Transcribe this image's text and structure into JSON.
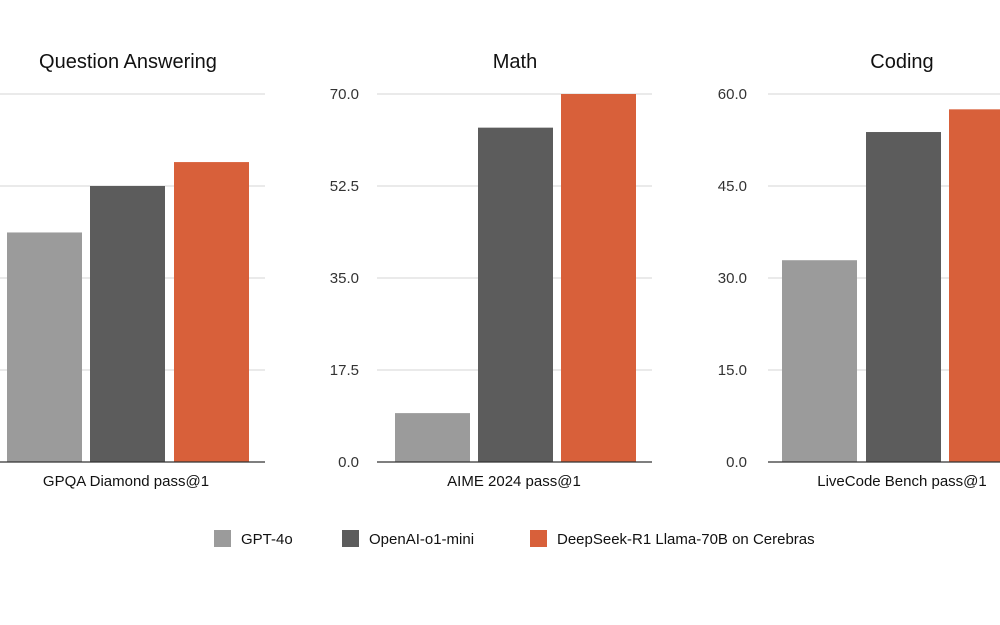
{
  "colors": {
    "GPT-4o": "#9b9b9b",
    "OpenAI-o1-mini": "#5c5c5c",
    "DeepSeek-R1 Llama-70B on Cerebras": "#d8603a"
  },
  "legend": [
    "GPT-4o",
    "OpenAI-o1-mini",
    "DeepSeek-R1 Llama-70B on Cerebras"
  ],
  "chart_data": [
    {
      "type": "bar",
      "title": "Question Answering",
      "xlabel": "GPQA Diamond pass@1",
      "ylabel": "",
      "ylim": [
        0,
        80
      ],
      "ticks": [],
      "grid": true,
      "series": [
        {
          "name": "GPT-4o",
          "values": [
            49.9
          ]
        },
        {
          "name": "OpenAI-o1-mini",
          "values": [
            60
          ]
        },
        {
          "name": "DeepSeek-R1 Llama-70B on Cerebras",
          "values": [
            65.2
          ]
        }
      ]
    },
    {
      "type": "bar",
      "title": "Math",
      "xlabel": "AIME 2024 pass@1",
      "ylabel": "",
      "ylim": [
        0,
        70
      ],
      "ticks": [
        "0.0",
        "17.5",
        "35.0",
        "52.5",
        "70.0"
      ],
      "grid": true,
      "series": [
        {
          "name": "GPT-4o",
          "values": [
            9.3
          ]
        },
        {
          "name": "OpenAI-o1-mini",
          "values": [
            63.6
          ]
        },
        {
          "name": "DeepSeek-R1 Llama-70B on Cerebras",
          "values": [
            70.0
          ]
        }
      ]
    },
    {
      "type": "bar",
      "title": "Coding",
      "xlabel": "LiveCode Bench pass@1",
      "ylabel": "",
      "ylim": [
        0,
        60
      ],
      "ticks": [
        "0.0",
        "15.0",
        "30.0",
        "45.0",
        "60.0"
      ],
      "grid": true,
      "series": [
        {
          "name": "GPT-4o",
          "values": [
            32.9
          ]
        },
        {
          "name": "OpenAI-o1-mini",
          "values": [
            53.8
          ]
        },
        {
          "name": "DeepSeek-R1 Llama-70B on Cerebras",
          "values": [
            57.5
          ]
        }
      ]
    }
  ]
}
